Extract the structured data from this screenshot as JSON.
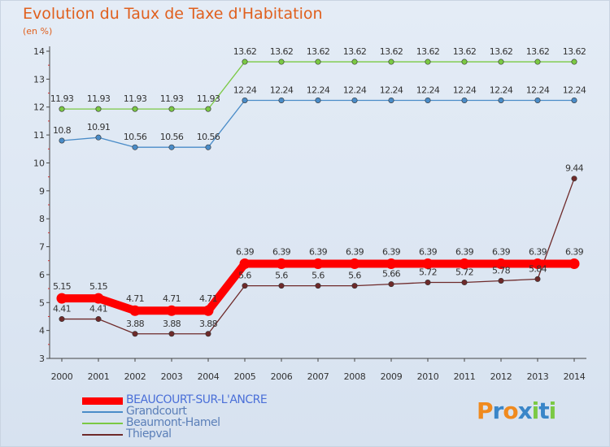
{
  "chart_data": {
    "type": "line",
    "title": "Evolution du Taux de Taxe d'Habitation",
    "subtitle": "(en %)",
    "xlabel": "",
    "ylabel": "(en %)",
    "ylim": [
      3,
      14
    ],
    "yticks": [
      3,
      4,
      5,
      6,
      7,
      8,
      9,
      10,
      11,
      12,
      13,
      14
    ],
    "categories": [
      "2000",
      "2001",
      "2002",
      "2003",
      "2004",
      "2005",
      "2006",
      "2007",
      "2008",
      "2009",
      "2010",
      "2011",
      "2012",
      "2013",
      "2014"
    ],
    "grid": false,
    "legend_position": "bottom-left",
    "series": [
      {
        "name": "Beaumont-Hamel",
        "color": "#7bc944",
        "thick": false,
        "values": [
          11.93,
          11.93,
          11.93,
          11.93,
          11.93,
          13.62,
          13.62,
          13.62,
          13.62,
          13.62,
          13.62,
          13.62,
          13.62,
          13.62,
          13.62
        ],
        "labels": [
          "11.93",
          "11.93",
          "11.93",
          "11.93",
          "11.93",
          "13.62",
          "13.62",
          "13.62",
          "13.62",
          "13.62",
          "13.62",
          "13.62",
          "13.62",
          "13.62",
          "13.62"
        ]
      },
      {
        "name": "Grandcourt",
        "color": "#4a8cc8",
        "thick": false,
        "values": [
          10.8,
          10.91,
          10.56,
          10.56,
          10.56,
          12.24,
          12.24,
          12.24,
          12.24,
          12.24,
          12.24,
          12.24,
          12.24,
          12.24,
          12.24
        ],
        "labels": [
          "10.8",
          "10.91",
          "10.56",
          "10.56",
          "10.56",
          "12.24",
          "12.24",
          "12.24",
          "12.24",
          "12.24",
          "12.24",
          "12.24",
          "12.24",
          "12.24",
          "12.24"
        ]
      },
      {
        "name": "Thiepval",
        "color": "#6e2a2a",
        "thick": false,
        "values": [
          4.41,
          4.41,
          3.88,
          3.88,
          3.88,
          5.6,
          5.6,
          5.6,
          5.6,
          5.66,
          5.72,
          5.72,
          5.78,
          5.84,
          9.44
        ],
        "labels": [
          "4.41",
          "4.41",
          "3.88",
          "3.88",
          "3.88",
          "5.6",
          "5.6",
          "5.6",
          "5.6",
          "5.66",
          "5.72",
          "5.72",
          "5.78",
          "5.84",
          "9.44"
        ]
      },
      {
        "name": "BEAUCOURT-SUR-L'ANCRE",
        "color": "#ff0000",
        "thick": true,
        "values": [
          5.15,
          5.15,
          4.71,
          4.71,
          4.71,
          6.39,
          6.39,
          6.39,
          6.39,
          6.39,
          6.39,
          6.39,
          6.39,
          6.39,
          6.39
        ],
        "labels": [
          "5.15",
          "5.15",
          "4.71",
          "4.71",
          "4.71",
          "6.39",
          "6.39",
          "6.39",
          "6.39",
          "6.39",
          "6.39",
          "6.39",
          "6.39",
          "6.39",
          "6.39"
        ]
      }
    ],
    "legend_order": [
      "BEAUCOURT-SUR-L'ANCRE",
      "Grandcourt",
      "Beaumont-Hamel",
      "Thiepval"
    ]
  },
  "logo": {
    "letters": [
      "P",
      "r",
      "o",
      "x",
      "i",
      "t",
      "i"
    ],
    "colors": [
      "#f08a1e",
      "#3a86c8",
      "#f08a1e",
      "#3a86c8",
      "#7bc944",
      "#3a86c8",
      "#7bc944"
    ]
  }
}
